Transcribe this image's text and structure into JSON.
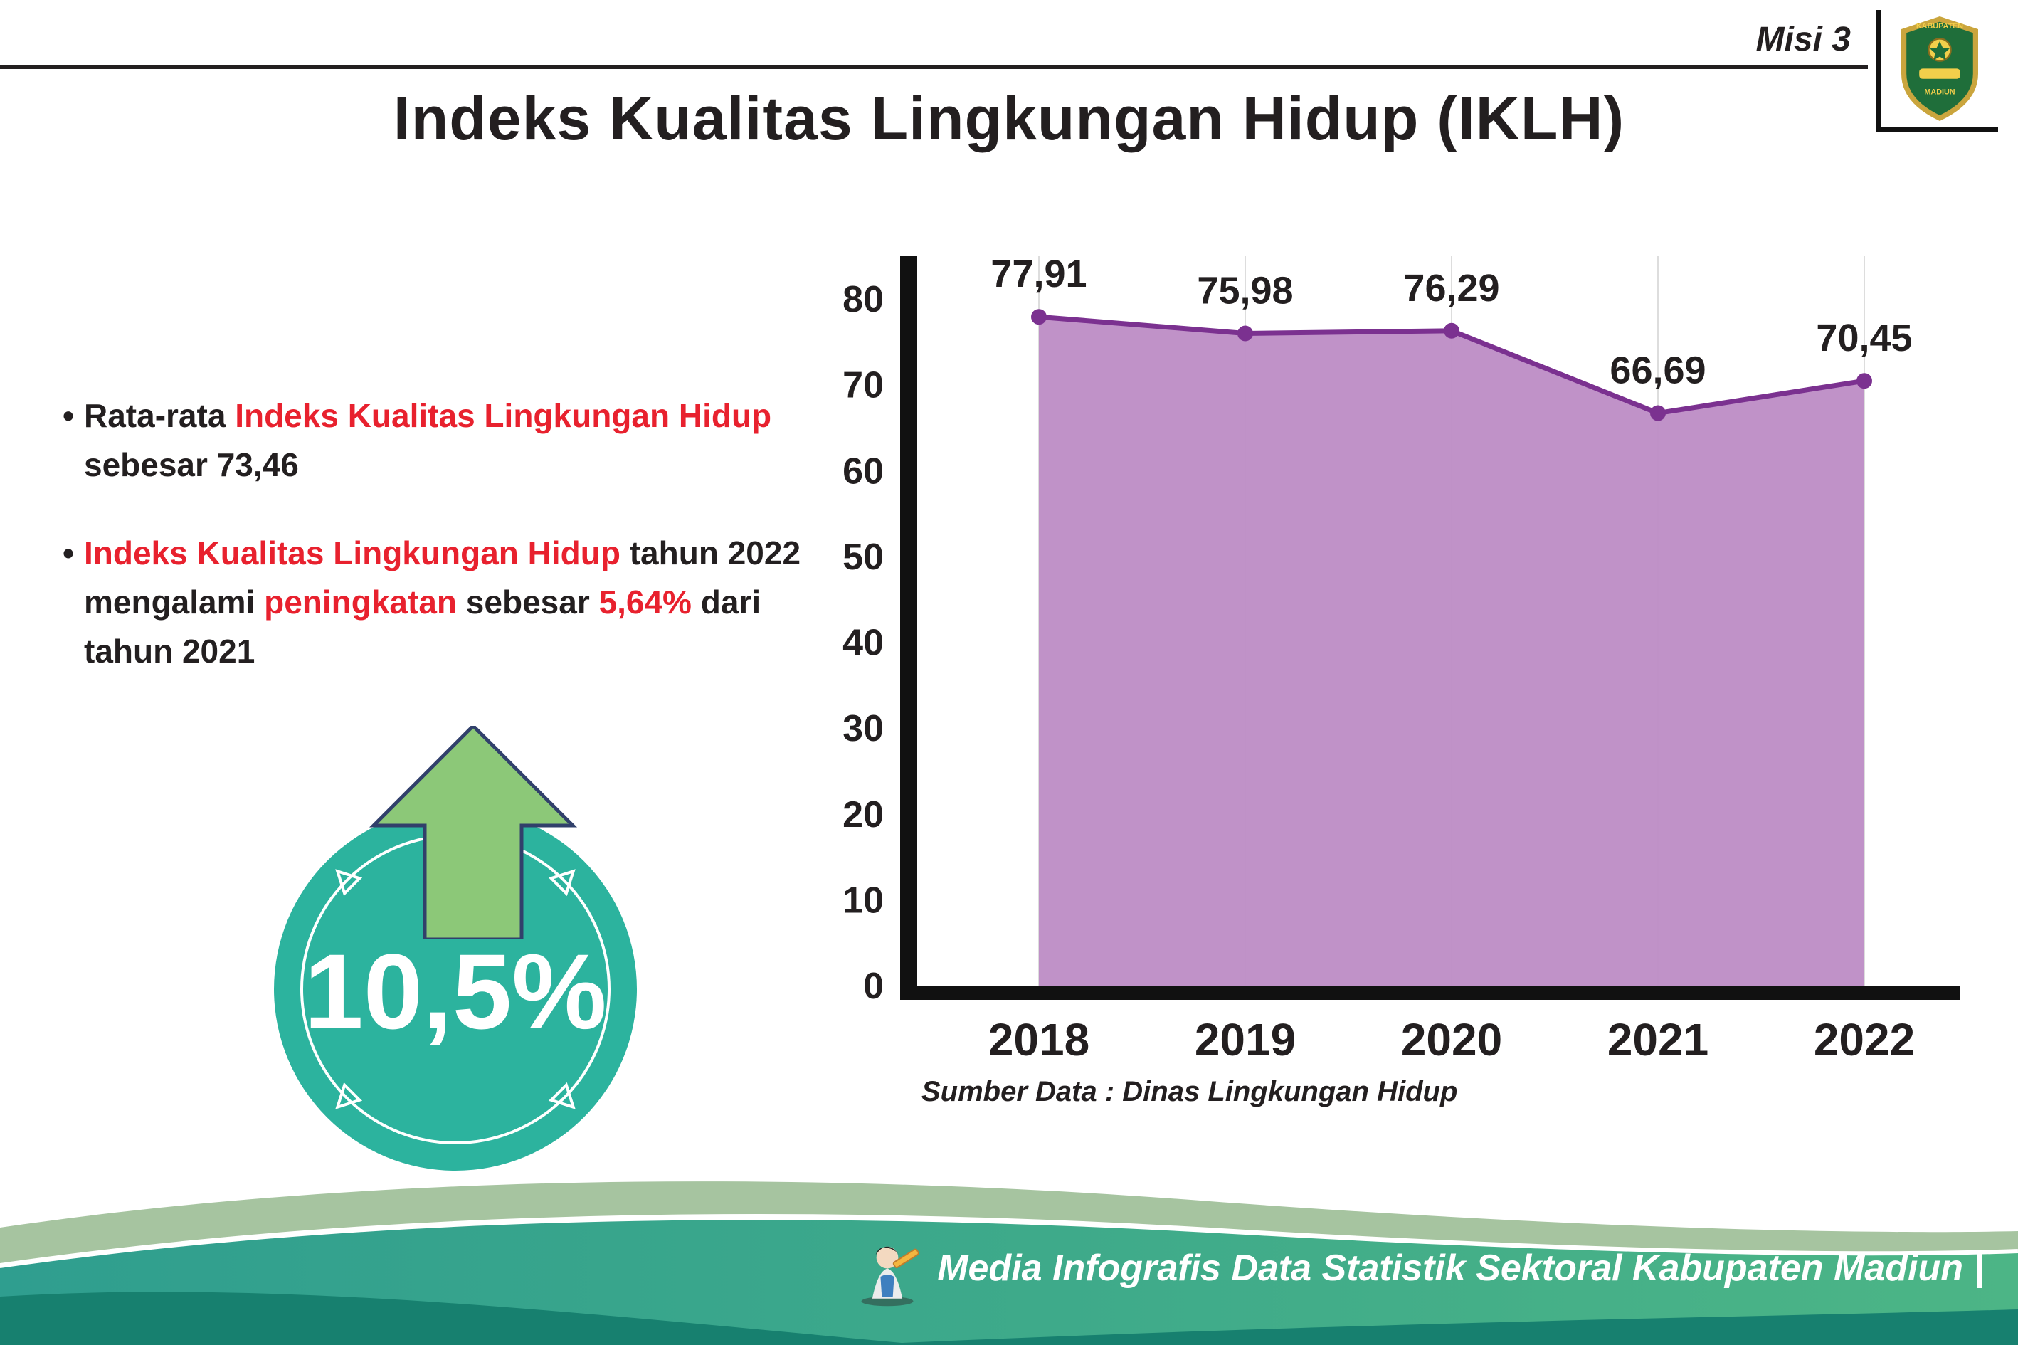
{
  "header": {
    "misi_label": "Misi 3",
    "title": "Indeks Kualitas Lingkungan Hidup (IKLH)",
    "logo": {
      "text_top": "KABUPATEN",
      "text_bottom": "MADIUN"
    }
  },
  "bullets": [
    {
      "segments": [
        {
          "text": "Rata-rata ",
          "color": "dark"
        },
        {
          "text": "Indeks Kualitas Lingkungan Hidup",
          "color": "red"
        },
        {
          "text": " sebesar 73,46",
          "color": "dark"
        }
      ]
    },
    {
      "segments": [
        {
          "text": "Indeks Kualitas Lingkungan Hidup",
          "color": "red"
        },
        {
          "text": " tahun 2022 mengalami ",
          "color": "dark"
        },
        {
          "text": "peningkatan",
          "color": "red"
        },
        {
          "text": " sebesar ",
          "color": "dark"
        },
        {
          "text": "5,64%",
          "color": "red"
        },
        {
          "text": " dari tahun 2021",
          "color": "dark"
        }
      ]
    }
  ],
  "badge": {
    "value": "10,5%"
  },
  "chart_data": {
    "type": "area",
    "title": "Indeks Kualitas Lingkungan Hidup (IKLH)",
    "categories": [
      "2018",
      "2019",
      "2020",
      "2021",
      "2022"
    ],
    "values": [
      77.91,
      75.98,
      76.29,
      66.69,
      70.45
    ],
    "labels": [
      "77,91",
      "75,98",
      "76,29",
      "66,69",
      "70,45"
    ],
    "ylim": [
      0,
      80
    ],
    "yticks": [
      0,
      10,
      20,
      30,
      40,
      50,
      60,
      70,
      80
    ],
    "grid": "vertical-light",
    "legend": "none",
    "source": "Sumber Data : Dinas Lingkungan Hidup",
    "area_color": "#bd8cc5",
    "line_color": "#7b3190"
  },
  "footer": {
    "text": "Media Infografis Data Statistik Sektoral Kabupaten Madiun |"
  },
  "colors": {
    "accent_red": "#e8212e",
    "text_dark": "#231f20",
    "badge_teal": "#2cb39e",
    "arrow_green": "#8cc878",
    "wave_sage": "#a6c4a0",
    "wave_teal": "#2f9e8f",
    "wave_dark": "#17806f"
  }
}
